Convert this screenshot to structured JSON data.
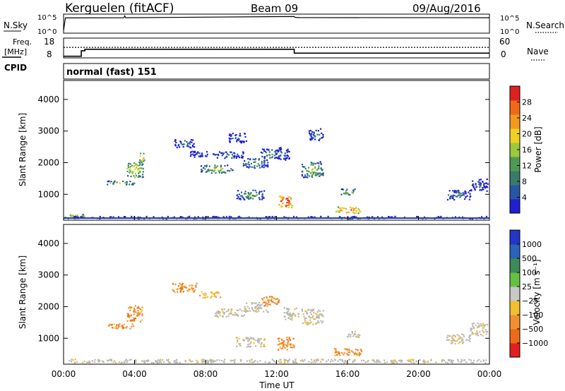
{
  "header": {
    "station": "Kerguelen (fitACF)",
    "beam": "Beam 09",
    "date": "09/Aug/2016"
  },
  "colors": {
    "power_scale": [
      "#2020d0",
      "#2855a8",
      "#3a7a6a",
      "#4e9a55",
      "#9cc83c",
      "#f0d020",
      "#f39a1e",
      "#ee6a18",
      "#e02020"
    ],
    "velocity_scale": [
      "#2236c8",
      "#2c62b8",
      "#3c8a58",
      "#66c044",
      "#c8c8c4",
      "#f0c030",
      "#f09030",
      "#ee6a18",
      "#e02020"
    ],
    "ground_scatter": "#b8b8b4",
    "frame": "#000000"
  },
  "chart_data": [
    {
      "id": "nsky-nsearch",
      "type": "line",
      "left_label": "N.Sky",
      "right_label": "N.Search",
      "left_ticks": [
        "10^5",
        "10^0"
      ],
      "right_ticks": [
        "10^5",
        "10^0"
      ],
      "description_of_trace": "near-constant noise level just below 10^5 all day, small spikes near 03:30 and 13:00",
      "x_hours": [
        0,
        0.1,
        3.4,
        3.45,
        3.5,
        13.0,
        13.05,
        13.3,
        24
      ],
      "y_log10": [
        0.5,
        4.3,
        4.35,
        4.9,
        4.35,
        4.7,
        4.45,
        4.4,
        4.35
      ]
    },
    {
      "id": "freq-nave",
      "type": "line",
      "left_label": "Freq.",
      "left_unit": "[MHz]",
      "right_label": "Nave",
      "left_ticks": [
        "18",
        "8"
      ],
      "right_ticks": [
        "60",
        "0"
      ],
      "freq_x_hours": [
        0,
        1.0,
        1.0,
        1.2,
        1.2,
        13.0,
        13.0,
        24
      ],
      "freq_mhz": [
        8.5,
        8.5,
        11.5,
        11.5,
        12.3,
        12.3,
        10.2,
        10.2
      ],
      "nave_level": 32
    },
    {
      "id": "cpid",
      "type": "table",
      "label": "CPID",
      "program": "normal (fast) 151"
    },
    {
      "id": "power",
      "type": "heatmap",
      "ylabel": "Slant Range [km]",
      "ylim": [
        180,
        4600
      ],
      "xlim_hours": [
        0,
        24
      ],
      "yticks": [
        1000,
        2000,
        3000,
        4000
      ],
      "colorbar_label": "Power [dB]",
      "colorbar_ticks": [
        "28",
        "24",
        "20",
        "16",
        "12",
        "8",
        "4"
      ],
      "colorbar_range": [
        0,
        32
      ],
      "patches": [
        {
          "t": 0.6,
          "r": 320,
          "w": 1.2,
          "h": 150,
          "level": 5
        },
        {
          "t": 3.2,
          "r": 1380,
          "w": 1.6,
          "h": 120,
          "level": 4
        },
        {
          "t": 4.0,
          "r": 1800,
          "w": 0.9,
          "h": 500,
          "level": 5
        },
        {
          "t": 4.4,
          "r": 2200,
          "w": 0.3,
          "h": 300,
          "level": 6
        },
        {
          "t": 6.8,
          "r": 2620,
          "w": 1.2,
          "h": 260,
          "level": 2
        },
        {
          "t": 7.6,
          "r": 2300,
          "w": 1.2,
          "h": 200,
          "level": 1
        },
        {
          "t": 8.6,
          "r": 1820,
          "w": 1.8,
          "h": 250,
          "level": 4
        },
        {
          "t": 9.3,
          "r": 2260,
          "w": 1.8,
          "h": 200,
          "level": 2
        },
        {
          "t": 9.8,
          "r": 2800,
          "w": 1.0,
          "h": 300,
          "level": 1
        },
        {
          "t": 10.8,
          "r": 2000,
          "w": 1.4,
          "h": 300,
          "level": 3
        },
        {
          "t": 10.5,
          "r": 1000,
          "w": 1.6,
          "h": 300,
          "level": 3
        },
        {
          "t": 11.6,
          "r": 2300,
          "w": 1.0,
          "h": 300,
          "level": 3
        },
        {
          "t": 12.5,
          "r": 800,
          "w": 0.8,
          "h": 400,
          "level": 8
        },
        {
          "t": 12.3,
          "r": 2300,
          "w": 0.8,
          "h": 400,
          "level": 2
        },
        {
          "t": 14.0,
          "r": 1800,
          "w": 1.2,
          "h": 500,
          "level": 4
        },
        {
          "t": 14.2,
          "r": 2900,
          "w": 0.8,
          "h": 400,
          "level": 2
        },
        {
          "t": 16.0,
          "r": 1100,
          "w": 0.8,
          "h": 200,
          "level": 4
        },
        {
          "t": 16.0,
          "r": 520,
          "w": 1.4,
          "h": 200,
          "level": 7
        },
        {
          "t": 22.2,
          "r": 1000,
          "w": 1.4,
          "h": 300,
          "level": 2
        },
        {
          "t": 23.4,
          "r": 1300,
          "w": 1.0,
          "h": 400,
          "level": 1
        },
        {
          "t": 12,
          "r": 250,
          "w": 24,
          "h": 140,
          "level": 2
        }
      ]
    },
    {
      "id": "velocity",
      "type": "heatmap",
      "ylabel": "Slant Range [km]",
      "xlabel": "Time UT",
      "ylim": [
        180,
        4600
      ],
      "xlim_hours": [
        0,
        24
      ],
      "yticks": [
        1000,
        2000,
        3000,
        4000
      ],
      "xtick_labels": [
        "00:00",
        "04:00",
        "08:00",
        "12:00",
        "16:00",
        "20:00",
        "00:00"
      ],
      "colorbar_label": "Velocity [m s⁻¹]",
      "colorbar_ticks": [
        "1000",
        "500",
        "100",
        "25",
        "−25",
        "−100",
        "−500",
        "−1000"
      ],
      "patches": [
        {
          "t": 3.2,
          "r": 1400,
          "w": 1.6,
          "h": 150,
          "v": 6
        },
        {
          "t": 4.0,
          "r": 1800,
          "w": 0.9,
          "h": 500,
          "v": 6
        },
        {
          "t": 6.8,
          "r": 2620,
          "w": 1.4,
          "h": 280,
          "v": 6
        },
        {
          "t": 8.2,
          "r": 2400,
          "w": 1.2,
          "h": 200,
          "v": 5
        },
        {
          "t": 9.4,
          "r": 1820,
          "w": 1.8,
          "h": 250,
          "v": 4
        },
        {
          "t": 10.8,
          "r": 2000,
          "w": 1.4,
          "h": 300,
          "v": 4
        },
        {
          "t": 11.6,
          "r": 2200,
          "w": 1.0,
          "h": 300,
          "v": 6
        },
        {
          "t": 10.5,
          "r": 900,
          "w": 1.6,
          "h": 300,
          "v": 4
        },
        {
          "t": 12.5,
          "r": 850,
          "w": 1.0,
          "h": 400,
          "v": 6
        },
        {
          "t": 12.8,
          "r": 1800,
          "w": 0.8,
          "h": 400,
          "v": 4
        },
        {
          "t": 14.0,
          "r": 1700,
          "w": 1.2,
          "h": 500,
          "v": 4
        },
        {
          "t": 16.0,
          "r": 600,
          "w": 1.6,
          "h": 250,
          "v": 6
        },
        {
          "t": 16.3,
          "r": 1150,
          "w": 0.8,
          "h": 200,
          "v": 4
        },
        {
          "t": 22.2,
          "r": 1000,
          "w": 1.4,
          "h": 300,
          "v": 4
        },
        {
          "t": 23.4,
          "r": 1300,
          "w": 1.0,
          "h": 400,
          "v": 4
        },
        {
          "t": 12,
          "r": 280,
          "w": 24,
          "h": 150,
          "v": 4
        }
      ]
    }
  ]
}
